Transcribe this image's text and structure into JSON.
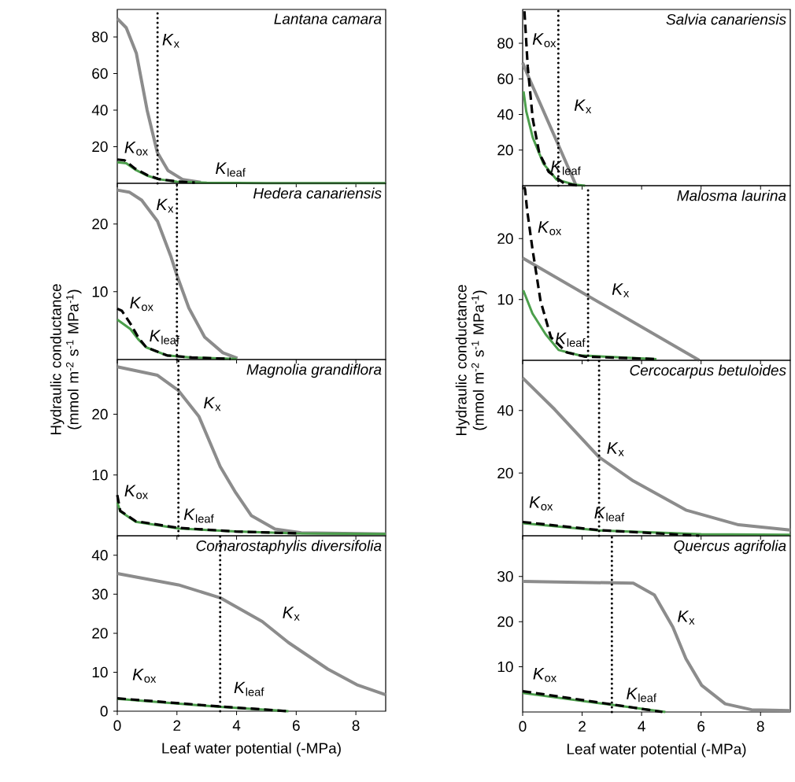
{
  "chart_data": [
    {
      "type": "line",
      "title": "Lantana camara",
      "xlim": [
        0,
        9
      ],
      "xticks": [
        0,
        2,
        4,
        6,
        8
      ],
      "ylim": [
        0,
        95
      ],
      "yticks": [
        20,
        40,
        60,
        80
      ],
      "tick_labels": "y",
      "series": [
        {
          "name": "*K*$_{x}$",
          "color": "#8c8c8c",
          "line_style": "solid",
          "x": [
            0,
            0.3,
            0.64,
            1.0,
            1.34,
            1.7,
            2.2,
            2.8
          ],
          "values": [
            90,
            85,
            71,
            40,
            17,
            7,
            2,
            0.5
          ]
        },
        {
          "name": "*K*$_{leaf}$",
          "color": "#4c9f4c",
          "line_style": "solid",
          "x": [
            0,
            0.3,
            0.6,
            1.0,
            1.4,
            2.0,
            3.0,
            5.0,
            9.0
          ],
          "values": [
            11.5,
            11,
            7.5,
            4.2,
            2.2,
            0.9,
            0.3,
            0.1,
            0.1
          ]
        },
        {
          "name": "*K*$_{ox}$",
          "color": "#000000",
          "line_style": "dashed",
          "x": [
            0,
            0.25,
            0.6,
            1.0,
            1.4,
            2.0,
            2.6
          ],
          "values": [
            13,
            12.5,
            8,
            4.5,
            2.3,
            1,
            0.4
          ]
        }
      ],
      "ref_lines": [
        {
          "axis": "x",
          "value": 1.35,
          "color": "#000000",
          "line_style": "dotted"
        }
      ]
    },
    {
      "type": "line",
      "title": "Hedera canariensis",
      "xlim": [
        0,
        9
      ],
      "xticks": [
        0,
        2,
        4,
        6,
        8
      ],
      "ylim": [
        0,
        26
      ],
      "yticks": [
        10,
        20
      ],
      "tick_labels": "y",
      "ylabel": "Hydraulic conductance (mmol m$^{-2}$ s$^{-1}$ MPa$^{-1}$)",
      "series": [
        {
          "name": "*K*$_{x}$",
          "color": "#8c8c8c",
          "line_style": "solid",
          "x": [
            0,
            0.4,
            0.82,
            1.35,
            1.79,
            2.01,
            2.4,
            2.93,
            3.54,
            4.03
          ],
          "values": [
            25,
            24.7,
            23.5,
            20.4,
            15.3,
            12.3,
            7.6,
            3.3,
            1,
            0.2
          ]
        },
        {
          "name": "*K*$_{leaf}$",
          "color": "#4c9f4c",
          "line_style": "solid",
          "x": [
            0,
            0.44,
            0.7,
            0.97,
            1.67,
            2.5,
            4.0
          ],
          "values": [
            5.9,
            4.5,
            3.0,
            1.8,
            0.6,
            0.3,
            0.1
          ]
        },
        {
          "name": "*K*$_{ox}$",
          "color": "#000000",
          "line_style": "dashed",
          "x": [
            0,
            0.15,
            0.44,
            0.7,
            0.97,
            1.67,
            2.5,
            3.8
          ],
          "values": [
            7.5,
            7.2,
            5.3,
            3.3,
            1.8,
            0.6,
            0.3,
            0.1
          ]
        }
      ],
      "ref_lines": [
        {
          "axis": "x",
          "value": 2.0,
          "color": "#000000",
          "line_style": "dotted"
        }
      ]
    },
    {
      "type": "line",
      "title": "Magnolia grandiflora",
      "xlim": [
        0,
        9
      ],
      "xticks": [
        0,
        2,
        4,
        6,
        8
      ],
      "ylim": [
        0,
        29
      ],
      "yticks": [
        10,
        20
      ],
      "tick_labels": "y",
      "series": [
        {
          "name": "*K*$_{x}$",
          "color": "#8c8c8c",
          "line_style": "solid",
          "x": [
            0,
            1.35,
            2.05,
            2.74,
            3.45,
            3.97,
            4.5,
            5.29,
            6.17,
            9.0
          ],
          "values": [
            27.8,
            26.4,
            23.9,
            19.6,
            11.4,
            7.1,
            3.3,
            1.1,
            0.5,
            0.3
          ]
        },
        {
          "name": "*K*$_{leaf}$",
          "color": "#4c9f4c",
          "line_style": "solid",
          "x": [
            0,
            0.1,
            0.62,
            2.05,
            3.97,
            6.0,
            9.0
          ],
          "values": [
            5.5,
            4.0,
            2.3,
            1.2,
            0.7,
            0.4,
            0.3
          ]
        },
        {
          "name": "*K*$_{ox}$",
          "color": "#000000",
          "line_style": "dashed",
          "x": [
            0,
            0.1,
            0.62,
            2.05,
            3.97,
            6.0
          ],
          "values": [
            6.7,
            4.1,
            2.4,
            1.3,
            0.7,
            0.4
          ]
        }
      ],
      "ref_lines": [
        {
          "axis": "x",
          "value": 2.05,
          "color": "#000000",
          "line_style": "dotted"
        }
      ]
    },
    {
      "type": "line",
      "title": "Comarostaphylis diversifolia",
      "xlim": [
        0,
        9
      ],
      "xticks": [
        0,
        2,
        4,
        6,
        8
      ],
      "ylim": [
        0,
        45
      ],
      "yticks": [
        0,
        10,
        20,
        30,
        40
      ],
      "xlabel": "Leaf water potential (-MPa)",
      "series": [
        {
          "name": "*K*$_{x}$",
          "color": "#8c8c8c",
          "line_style": "solid",
          "x": [
            0,
            2.05,
            3.45,
            4.86,
            5.74,
            7.06,
            8.03,
            9.0
          ],
          "values": [
            35.3,
            32.4,
            29.1,
            23,
            17.6,
            10.8,
            6.8,
            4.2
          ]
        },
        {
          "name": "*K*$_{leaf}$",
          "color": "#4c9f4c",
          "line_style": "solid",
          "x": [
            0,
            3.45,
            5.74
          ],
          "values": [
            3.2,
            1.1,
            0
          ]
        },
        {
          "name": "*K*$_{ox}$",
          "color": "#000000",
          "line_style": "dashed",
          "x": [
            0,
            3.45,
            5.74
          ],
          "values": [
            3.3,
            1.2,
            0
          ]
        }
      ],
      "ref_lines": [
        {
          "axis": "x",
          "value": 3.45,
          "color": "#000000",
          "line_style": "dotted"
        }
      ]
    },
    {
      "type": "line",
      "title": "Salvia canariensis",
      "xlim": [
        0,
        9
      ],
      "xticks": [
        0,
        2,
        4,
        6,
        8
      ],
      "ylim": [
        0,
        99
      ],
      "yticks": [
        20,
        40,
        60,
        80
      ],
      "tick_labels": "y",
      "series": [
        {
          "name": "*K*$_{x}$",
          "color": "#8c8c8c",
          "line_style": "solid",
          "x": [
            0,
            0.2,
            1.8
          ],
          "values": [
            69,
            61,
            0
          ]
        },
        {
          "name": "*K*$_{leaf}$",
          "color": "#4c9f4c",
          "line_style": "solid",
          "x": [
            0.03,
            0.12,
            0.34,
            0.7,
            1.14,
            1.76,
            2.1
          ],
          "values": [
            52.9,
            41.8,
            27,
            12.3,
            3.4,
            0.5,
            0
          ]
        },
        {
          "name": "*K*$_{ox}$",
          "color": "#000000",
          "line_style": "dashed",
          "x": [
            0.06,
            0.17,
            0.34,
            0.56,
            0.87,
            1.4,
            1.9
          ],
          "values": [
            98,
            67,
            37.4,
            18.2,
            7.9,
            1.2,
            0
          ]
        }
      ],
      "ref_lines": [
        {
          "axis": "x",
          "value": 1.2,
          "color": "#000000",
          "line_style": "dotted"
        }
      ]
    },
    {
      "type": "line",
      "title": "Malosma laurina",
      "xlim": [
        0,
        9
      ],
      "xticks": [
        0,
        2,
        4,
        6,
        8
      ],
      "ylim": [
        0,
        28.7
      ],
      "yticks": [
        10,
        20
      ],
      "tick_labels": "y",
      "ylabel": "Hydraulic conductance (mmol m$^{-2}$ s$^{-1}$ MPa$^{-1}$)",
      "series": [
        {
          "name": "*K*$_{x}$",
          "color": "#8c8c8c",
          "line_style": "solid",
          "x": [
            0,
            5.94
          ],
          "values": [
            16.8,
            0
          ]
        },
        {
          "name": "*K*$_{leaf}$",
          "color": "#4c9f4c",
          "line_style": "solid",
          "x": [
            0.02,
            0.33,
            0.77,
            1.21,
            1.92,
            4.5
          ],
          "values": [
            11.5,
            7.7,
            4.3,
            1.7,
            0.8,
            0.2
          ]
        },
        {
          "name": "*K*$_{ox}$",
          "color": "#000000",
          "line_style": "dashed",
          "x": [
            0.05,
            0.08,
            0.15,
            0.33,
            0.6,
            0.95,
            1.48,
            2.1,
            4.5
          ],
          "values": [
            28.5,
            28.1,
            24.7,
            18.3,
            9.8,
            3.8,
            1.3,
            0.6,
            0.2
          ]
        }
      ],
      "ref_lines": [
        {
          "axis": "x",
          "value": 2.2,
          "color": "#000000",
          "line_style": "dotted"
        }
      ]
    },
    {
      "type": "line",
      "title": "Cercocarpus betuloides",
      "xlim": [
        0,
        9
      ],
      "xticks": [
        0,
        2,
        4,
        6,
        8
      ],
      "ylim": [
        0,
        56
      ],
      "yticks": [
        20,
        40
      ],
      "tick_labels": "y",
      "series": [
        {
          "name": "*K*$_{x}$",
          "color": "#8c8c8c",
          "line_style": "solid",
          "x": [
            0,
            1.08,
            2.57,
            3.72,
            5.49,
            7.26,
            9.0
          ],
          "values": [
            50.4,
            40.3,
            25.1,
            17.5,
            8.2,
            3.5,
            1.8
          ]
        },
        {
          "name": "*K*$_{leaf}$",
          "color": "#4c9f4c",
          "line_style": "solid",
          "x": [
            0,
            2.57,
            6.0,
            9.0
          ],
          "values": [
            4.0,
            1.7,
            0.5,
            0.3
          ]
        },
        {
          "name": "*K*$_{ox}$",
          "color": "#000000",
          "line_style": "dashed",
          "x": [
            0,
            2.57,
            5.94
          ],
          "values": [
            4.4,
            1.8,
            0
          ]
        }
      ],
      "ref_lines": [
        {
          "axis": "x",
          "value": 2.57,
          "color": "#000000",
          "line_style": "dotted"
        }
      ]
    },
    {
      "type": "line",
      "title": "Quercus agrifolia",
      "xlim": [
        0,
        9
      ],
      "xticks": [
        0,
        2,
        4,
        6,
        8
      ],
      "ylim": [
        0,
        39
      ],
      "yticks": [
        10,
        20,
        30
      ],
      "xlabel": "Leaf water potential (-MPa)",
      "series": [
        {
          "name": "*K*$_{x}$",
          "color": "#8c8c8c",
          "line_style": "solid",
          "x": [
            0,
            3.72,
            4.43,
            5.05,
            5.49,
            6.02,
            6.81,
            7.7,
            9.0
          ],
          "values": [
            28.9,
            28.5,
            25.9,
            18.8,
            11.8,
            5.9,
            1.8,
            0.5,
            0.3
          ]
        },
        {
          "name": "*K*$_{leaf}$",
          "color": "#4c9f4c",
          "line_style": "solid",
          "x": [
            0,
            2.98,
            4.8
          ],
          "values": [
            4.2,
            1.6,
            0
          ]
        },
        {
          "name": "*K*$_{ox}$",
          "color": "#000000",
          "line_style": "dashed",
          "x": [
            0,
            2.98,
            4.7
          ],
          "values": [
            4.6,
            1.7,
            0
          ]
        }
      ],
      "ref_lines": [
        {
          "axis": "x",
          "value": 3.0,
          "color": "#000000",
          "line_style": "dotted"
        }
      ]
    }
  ]
}
